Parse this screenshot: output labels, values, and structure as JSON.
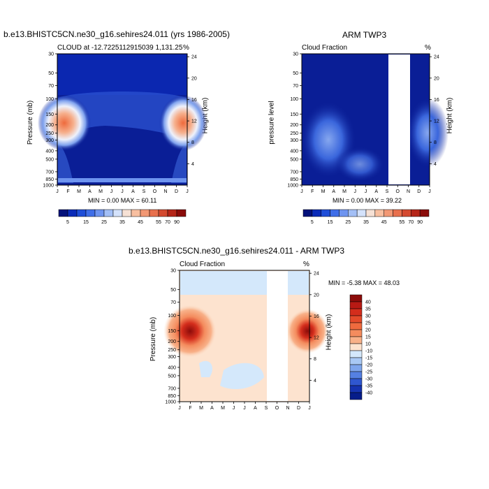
{
  "panels": [
    {
      "title": "b.e13.BHISTC5CN.ne30_g16.sehires24.011 (yrs 1986-2005)",
      "left_subtitle": "CLOUD at -12.7225112915039 1,131.25",
      "right_subtitle": "%",
      "ylabel": "Pressure (mb)",
      "y2label": "Height (km)",
      "minmax": "MIN =   0.00 MAX =  60.11"
    },
    {
      "title": "ARM TWP3",
      "left_subtitle": "Cloud Fraction",
      "right_subtitle": "%",
      "ylabel": "pressure level",
      "y2label": "Height (km)",
      "minmax": "MIN =   0.00 MAX =  39.22"
    },
    {
      "title": "b.e13.BHISTC5CN.ne30_g16.sehires24.011 - ARM TWP3",
      "left_subtitle": "Cloud Fraction",
      "right_subtitle": "%",
      "ylabel": "Pressure (mb)",
      "y2label": "Height (km)",
      "minmax": "MIN =  -5.38 MAX =  48.03"
    }
  ],
  "colors": {
    "deep_blue": "#0a1e96",
    "low_red": "#ee6a3c",
    "diff_pale_orange": "#fde3cf",
    "diff_pale_blue": "#d4e8fb"
  },
  "chart_data": [
    {
      "type": "heatmap",
      "title": "b.e13.BHISTC5CN.ne30_g16.sehires24.011 (yrs 1986-2005)",
      "x_ticks": [
        "J",
        "F",
        "M",
        "A",
        "M",
        "J",
        "J",
        "A",
        "S",
        "O",
        "N",
        "D",
        "J"
      ],
      "y_ticks": [
        "30",
        "50",
        "70",
        "100",
        "150",
        "200",
        "250",
        "300",
        "400",
        "500",
        "700",
        "850",
        "1000"
      ],
      "y2_ticks": [
        "24",
        "20",
        "16",
        "12",
        "8",
        "4"
      ],
      "ylabel": "Pressure (mb)",
      "y2label": "Height (km)",
      "min": 0.0,
      "max": 60.11,
      "colorbar_labels": [
        "5",
        "15",
        "25",
        "35",
        "45",
        "55",
        "70",
        "90"
      ],
      "colorbar_colors": [
        "#03117a",
        "#0a2bb8",
        "#1f4ed8",
        "#3f6ee8",
        "#6e94f0",
        "#a3bff6",
        "#d4e2fb",
        "#f6e1d5",
        "#f8bfa0",
        "#f29874",
        "#e8704d",
        "#d44a30",
        "#b52619",
        "#8a0c0a"
      ]
    },
    {
      "type": "heatmap",
      "title": "ARM TWP3",
      "x_ticks": [
        "J",
        "F",
        "M",
        "A",
        "M",
        "J",
        "J",
        "A",
        "S",
        "O",
        "N",
        "D",
        "J"
      ],
      "y_ticks": [
        "30",
        "50",
        "70",
        "100",
        "150",
        "200",
        "250",
        "300",
        "400",
        "500",
        "700",
        "850",
        "1000"
      ],
      "y2_ticks": [
        "24",
        "20",
        "16",
        "12",
        "8",
        "4"
      ],
      "ylabel": "pressure level",
      "y2label": "Height (km)",
      "min": 0.0,
      "max": 39.22,
      "missing_months": [
        "Sep-Oct"
      ],
      "colorbar_labels": [
        "5",
        "15",
        "25",
        "35",
        "45",
        "55",
        "70",
        "90"
      ],
      "colorbar_colors": [
        "#03117a",
        "#0a2bb8",
        "#1f4ed8",
        "#3f6ee8",
        "#6e94f0",
        "#a3bff6",
        "#d4e2fb",
        "#f6e1d5",
        "#f8bfa0",
        "#f29874",
        "#e8704d",
        "#d44a30",
        "#b52619",
        "#8a0c0a"
      ]
    },
    {
      "type": "heatmap",
      "title": "b.e13.BHISTC5CN.ne30_g16.sehires24.011 - ARM TWP3",
      "x_ticks": [
        "J",
        "F",
        "M",
        "A",
        "M",
        "J",
        "J",
        "A",
        "S",
        "O",
        "N",
        "D",
        "J"
      ],
      "y_ticks": [
        "30",
        "50",
        "70",
        "100",
        "150",
        "200",
        "250",
        "300",
        "400",
        "500",
        "700",
        "850",
        "1000"
      ],
      "y2_ticks": [
        "24",
        "20",
        "16",
        "12",
        "8",
        "4"
      ],
      "ylabel": "Pressure (mb)",
      "y2label": "Height (km)",
      "min": -5.38,
      "max": 48.03,
      "colorbar_labels": [
        "40",
        "35",
        "30",
        "25",
        "20",
        "15",
        "10",
        "-10",
        "-15",
        "-20",
        "-25",
        "-30",
        "-35",
        "-40"
      ],
      "colorbar_colors": [
        "#8c0c0a",
        "#b81a14",
        "#d42d1c",
        "#e44a2a",
        "#ef6a3e",
        "#f48c5e",
        "#f8b189",
        "#fde3cf",
        "#d4e8fb",
        "#a9c9f4",
        "#7fa6ec",
        "#5580e2",
        "#2f57d0",
        "#1533b0",
        "#061d8a"
      ]
    }
  ]
}
